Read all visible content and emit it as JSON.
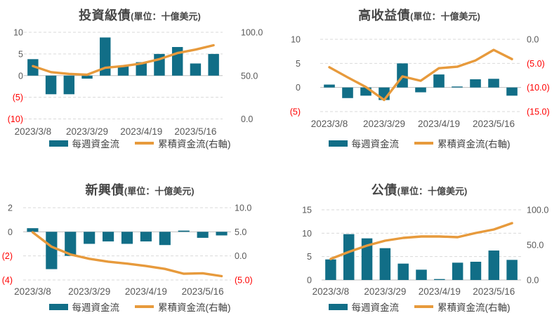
{
  "colors": {
    "background": "#FFFFFF",
    "bar": "#116E87",
    "line": "#E79A3C",
    "axis_text": "#595959",
    "negative_text": "#FF0000",
    "title_text": "#474747",
    "gridline": "#D9D9D9",
    "zero_line": "#BFBFBF"
  },
  "legend": {
    "bar_label": "每週資金流",
    "line_label": "累積資金流(右軸)"
  },
  "chart_data": [
    {
      "type": "bar",
      "title": "投資級債",
      "unit": "(單位：十億美元)",
      "n_points": 11,
      "x_tick_labels": [
        "2023/3/8",
        "2023/3/29",
        "2023/4/19",
        "2023/5/16"
      ],
      "x_tick_positions": [
        0,
        3,
        6,
        9
      ],
      "series": [
        {
          "name": "每週資金流",
          "type": "bar",
          "axis": "left",
          "values": [
            3.8,
            -4.3,
            -4.3,
            -0.7,
            8.8,
            2.2,
            3.1,
            5.0,
            6.6,
            2.8,
            5.0
          ]
        },
        {
          "name": "累積資金流(右軸)",
          "type": "line",
          "axis": "right",
          "values": [
            61,
            54,
            52,
            51,
            59,
            61,
            64,
            69,
            76,
            80,
            85
          ]
        }
      ],
      "left_axis": {
        "min": -10,
        "max": 10,
        "ticks": [
          {
            "label": "10",
            "value": 10
          },
          {
            "label": "5",
            "value": 5
          },
          {
            "label": "0",
            "value": 0
          },
          {
            "label": "(5)",
            "value": -5
          },
          {
            "label": "(10)",
            "value": -10
          }
        ]
      },
      "right_axis": {
        "min": 0,
        "max": 100,
        "ticks": [
          {
            "label": "100.0",
            "value": 100
          },
          {
            "label": "50.0",
            "value": 50
          },
          {
            "label": "0.0",
            "value": 0
          }
        ]
      },
      "grid": "dashed-horizontal",
      "legend_position": "bottom"
    },
    {
      "type": "bar",
      "title": "高收益債",
      "unit": "(單位：十億美元)",
      "n_points": 11,
      "x_tick_labels": [
        "2023/3/8",
        "2023/3/29",
        "2023/4/19",
        "2023/5/16"
      ],
      "x_tick_positions": [
        0,
        3,
        6,
        9
      ],
      "series": [
        {
          "name": "每週資金流",
          "type": "bar",
          "axis": "left",
          "values": [
            0.6,
            -2.2,
            -1.7,
            -2.6,
            5.0,
            -1.0,
            2.7,
            0.2,
            1.7,
            1.8,
            -1.7
          ]
        },
        {
          "name": "累積資金流(右軸)",
          "type": "line",
          "axis": "right",
          "values": [
            -5.8,
            -7.9,
            -9.9,
            -12.6,
            -7.7,
            -8.6,
            -6.0,
            -5.7,
            -4.4,
            -2.2,
            -4.1
          ]
        }
      ],
      "left_axis": {
        "min": -5,
        "max": 10,
        "ticks": [
          {
            "label": "10",
            "value": 10
          },
          {
            "label": "5",
            "value": 5
          },
          {
            "label": "0",
            "value": 0
          },
          {
            "label": "(5)",
            "value": -5
          }
        ]
      },
      "right_axis": {
        "min": -15,
        "max": 0,
        "ticks": [
          {
            "label": "0.0",
            "value": 0
          },
          {
            "label": "(5.0)",
            "value": -5
          },
          {
            "label": "(10.0)",
            "value": -10
          },
          {
            "label": "(15.0)",
            "value": -15
          }
        ]
      },
      "grid": "dashed-horizontal",
      "legend_position": "bottom"
    },
    {
      "type": "bar",
      "title": "新興債",
      "unit": "(單位：十億美元)",
      "n_points": 11,
      "x_tick_labels": [
        "2023/3/8",
        "2023/3/29",
        "2023/4/19",
        "2023/5/16"
      ],
      "x_tick_positions": [
        0,
        3,
        6,
        9
      ],
      "series": [
        {
          "name": "每週資金流",
          "type": "bar",
          "axis": "left",
          "values": [
            0.3,
            -3.1,
            -2.0,
            -1.0,
            -0.8,
            -1.0,
            -0.8,
            -1.1,
            0.1,
            -0.5,
            -0.3
          ]
        },
        {
          "name": "累積資金流(右軸)",
          "type": "line",
          "axis": "right",
          "values": [
            4.9,
            1.9,
            0.3,
            -0.6,
            -1.2,
            -1.6,
            -2.1,
            -2.7,
            -3.7,
            -3.6,
            -4.2
          ]
        }
      ],
      "left_axis": {
        "min": -4,
        "max": 2,
        "ticks": [
          {
            "label": "2",
            "value": 2
          },
          {
            "label": "0",
            "value": 0
          },
          {
            "label": "(2)",
            "value": -2
          },
          {
            "label": "(4)",
            "value": -4
          }
        ]
      },
      "right_axis": {
        "min": -5,
        "max": 10,
        "ticks": [
          {
            "label": "10.0",
            "value": 10
          },
          {
            "label": "5.0",
            "value": 5
          },
          {
            "label": "0.0",
            "value": 0
          },
          {
            "label": "(5.0)",
            "value": -5
          }
        ]
      },
      "grid": "dashed-horizontal",
      "legend_position": "bottom"
    },
    {
      "type": "bar",
      "title": "公債",
      "unit": "(單位：十億美元)",
      "n_points": 11,
      "x_tick_labels": [
        "2023/3/8",
        "2023/3/29",
        "2023/4/19",
        "2023/5/16"
      ],
      "x_tick_positions": [
        0,
        3,
        6,
        9
      ],
      "series": [
        {
          "name": "每週資金流",
          "type": "bar",
          "axis": "left",
          "values": [
            4.4,
            9.8,
            8.9,
            6.8,
            3.5,
            2.2,
            0.2,
            3.7,
            3.9,
            6.3,
            4.3
          ]
        },
        {
          "name": "累積資金流(右軸)",
          "type": "line",
          "axis": "right",
          "values": [
            30,
            40,
            49,
            56,
            60,
            62,
            62,
            61,
            67,
            72,
            81
          ]
        }
      ],
      "left_axis": {
        "min": 0,
        "max": 15,
        "ticks": [
          {
            "label": "15",
            "value": 15
          },
          {
            "label": "10",
            "value": 10
          },
          {
            "label": "5",
            "value": 5
          },
          {
            "label": "0",
            "value": 0
          }
        ]
      },
      "right_axis": {
        "min": 0,
        "max": 100,
        "ticks": [
          {
            "label": "100.0",
            "value": 100
          },
          {
            "label": "50.0",
            "value": 50
          },
          {
            "label": "0.0",
            "value": 0
          }
        ]
      },
      "grid": "dashed-horizontal",
      "legend_position": "bottom"
    }
  ]
}
